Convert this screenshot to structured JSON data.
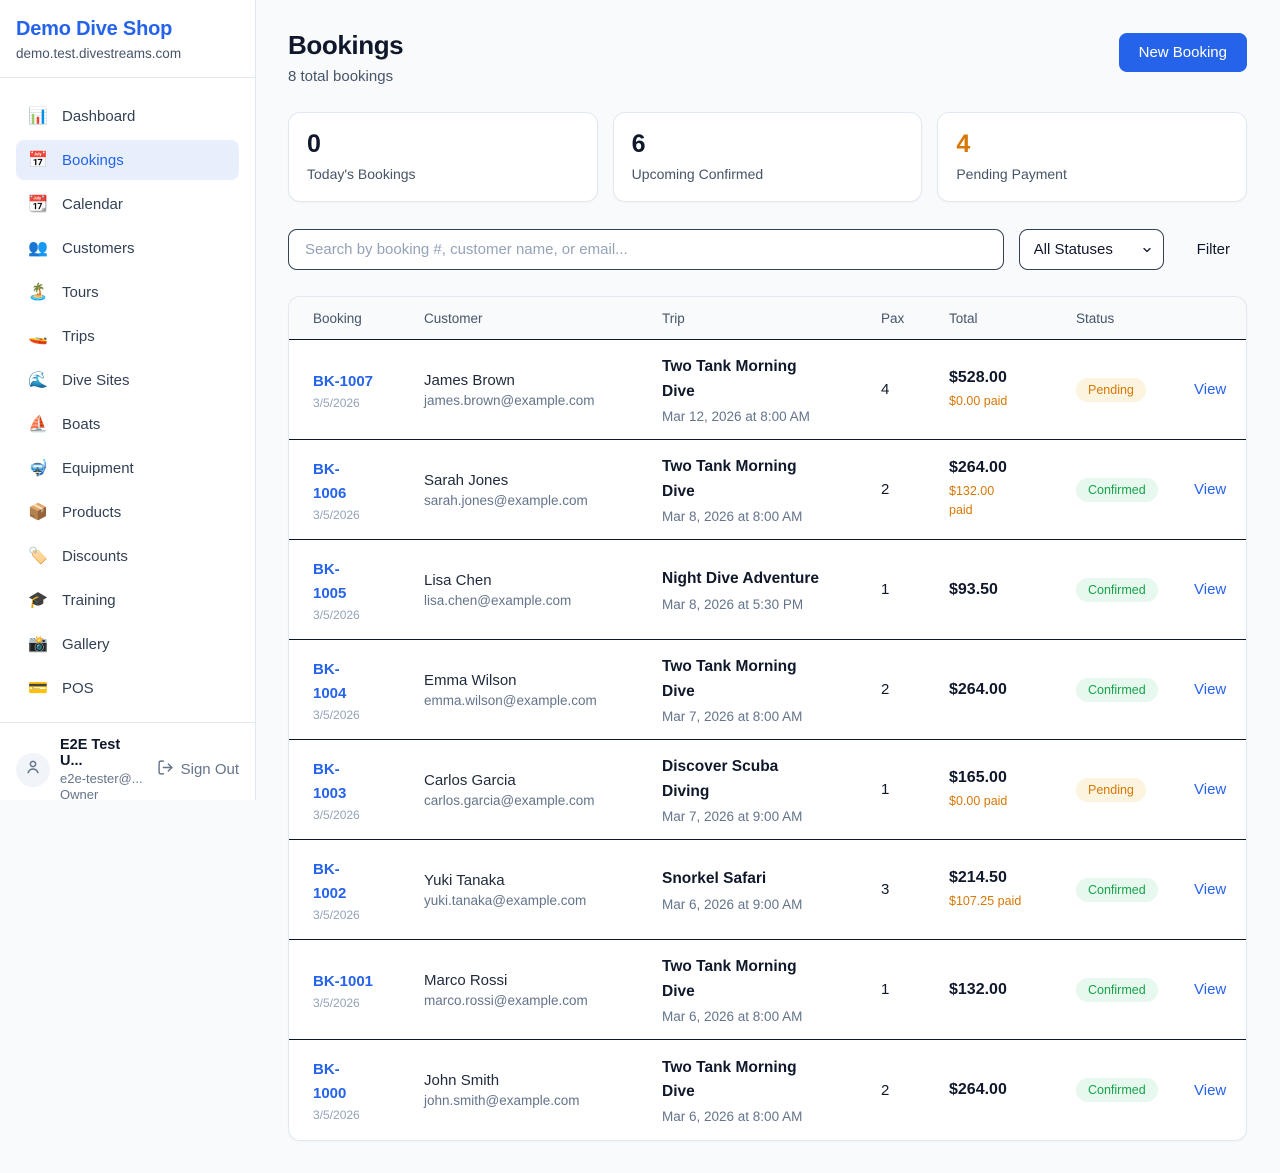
{
  "brand": {
    "name": "Demo Dive Shop",
    "domain": "demo.test.divestreams.com"
  },
  "sidebar": {
    "items": [
      {
        "icon": "📊",
        "icon_name": "bar-chart-icon",
        "label": "Dashboard",
        "active": false
      },
      {
        "icon": "📅",
        "icon_name": "calendar-icon",
        "label": "Bookings",
        "active": true
      },
      {
        "icon": "📆",
        "icon_name": "tear-off-calendar-icon",
        "label": "Calendar",
        "active": false
      },
      {
        "icon": "👥",
        "icon_name": "people-icon",
        "label": "Customers",
        "active": false
      },
      {
        "icon": "🏝️",
        "icon_name": "island-icon",
        "label": "Tours",
        "active": false
      },
      {
        "icon": "🚤",
        "icon_name": "speedboat-icon",
        "label": "Trips",
        "active": false
      },
      {
        "icon": "🌊",
        "icon_name": "wave-icon",
        "label": "Dive Sites",
        "active": false
      },
      {
        "icon": "⛵",
        "icon_name": "sailboat-icon",
        "label": "Boats",
        "active": false
      },
      {
        "icon": "🤿",
        "icon_name": "diving-mask-icon",
        "label": "Equipment",
        "active": false
      },
      {
        "icon": "📦",
        "icon_name": "package-icon",
        "label": "Products",
        "active": false
      },
      {
        "icon": "🏷️",
        "icon_name": "tag-icon",
        "label": "Discounts",
        "active": false
      },
      {
        "icon": "🎓",
        "icon_name": "graduation-cap-icon",
        "label": "Training",
        "active": false
      },
      {
        "icon": "📸",
        "icon_name": "camera-icon",
        "label": "Gallery",
        "active": false
      },
      {
        "icon": "💳",
        "icon_name": "credit-card-icon",
        "label": "POS",
        "active": false
      }
    ]
  },
  "user": {
    "name": "E2E Test U...",
    "email": "e2e-tester@...",
    "role": "Owner",
    "sign_out_label": "Sign Out"
  },
  "header": {
    "title": "Bookings",
    "subtitle": "8 total bookings",
    "new_booking_label": "New Booking"
  },
  "stats": [
    {
      "value": "0",
      "label": "Today's Bookings",
      "accent": "dark"
    },
    {
      "value": "6",
      "label": "Upcoming Confirmed",
      "accent": "dark"
    },
    {
      "value": "4",
      "label": "Pending Payment",
      "accent": "orange"
    }
  ],
  "controls": {
    "search_placeholder": "Search by booking #, customer name, or email...",
    "status_filter_value": "All Statuses",
    "filter_label": "Filter"
  },
  "table": {
    "columns": [
      "Booking",
      "Customer",
      "Trip",
      "Pax",
      "Total",
      "Status",
      ""
    ],
    "view_label": "View",
    "rows": [
      {
        "id": "BK-1007",
        "date": "3/5/2026",
        "customer": "James Brown",
        "email": "james.brown@example.com",
        "trip": "Two Tank Morning\nDive",
        "trip_time": "Mar 12, 2026 at 8:00 AM",
        "pax": "4",
        "total": "$528.00",
        "paid": "$0.00 paid",
        "status": "Pending"
      },
      {
        "id": "BK-\n1006",
        "date": "3/5/2026",
        "customer": "Sarah Jones",
        "email": "sarah.jones@example.com",
        "trip": "Two Tank Morning\nDive",
        "trip_time": "Mar 8, 2026 at 8:00 AM",
        "pax": "2",
        "total": "$264.00",
        "paid": "$132.00\npaid",
        "status": "Confirmed"
      },
      {
        "id": "BK-\n1005",
        "date": "3/5/2026",
        "customer": "Lisa Chen",
        "email": "lisa.chen@example.com",
        "trip": "Night Dive Adventure",
        "trip_time": "Mar 8, 2026 at 5:30 PM",
        "pax": "1",
        "total": "$93.50",
        "paid": "",
        "status": "Confirmed"
      },
      {
        "id": "BK-\n1004",
        "date": "3/5/2026",
        "customer": "Emma Wilson",
        "email": "emma.wilson@example.com",
        "trip": "Two Tank Morning\nDive",
        "trip_time": "Mar 7, 2026 at 8:00 AM",
        "pax": "2",
        "total": "$264.00",
        "paid": "",
        "status": "Confirmed"
      },
      {
        "id": "BK-\n1003",
        "date": "3/5/2026",
        "customer": "Carlos Garcia",
        "email": "carlos.garcia@example.com",
        "trip": "Discover Scuba\nDiving",
        "trip_time": "Mar 7, 2026 at 9:00 AM",
        "pax": "1",
        "total": "$165.00",
        "paid": "$0.00 paid",
        "status": "Pending"
      },
      {
        "id": "BK-\n1002",
        "date": "3/5/2026",
        "customer": "Yuki Tanaka",
        "email": "yuki.tanaka@example.com",
        "trip": "Snorkel Safari",
        "trip_time": "Mar 6, 2026 at 9:00 AM",
        "pax": "3",
        "total": "$214.50",
        "paid": "$107.25 paid",
        "status": "Confirmed"
      },
      {
        "id": "BK-1001",
        "date": "3/5/2026",
        "customer": "Marco Rossi",
        "email": "marco.rossi@example.com",
        "trip": "Two Tank Morning\nDive",
        "trip_time": "Mar 6, 2026 at 8:00 AM",
        "pax": "1",
        "total": "$132.00",
        "paid": "",
        "status": "Confirmed"
      },
      {
        "id": "BK-\n1000",
        "date": "3/5/2026",
        "customer": "John Smith",
        "email": "john.smith@example.com",
        "trip": "Two Tank Morning\nDive",
        "trip_time": "Mar 6, 2026 at 8:00 AM",
        "pax": "2",
        "total": "$264.00",
        "paid": "",
        "status": "Confirmed"
      }
    ]
  },
  "colors": {
    "brand_blue": "#2563eb",
    "pending_text": "#d97706",
    "pending_bg": "#fdf4df",
    "confirmed_text": "#16a34a",
    "confirmed_bg": "#e7f8ee",
    "page_bg": "#f8fafc"
  }
}
